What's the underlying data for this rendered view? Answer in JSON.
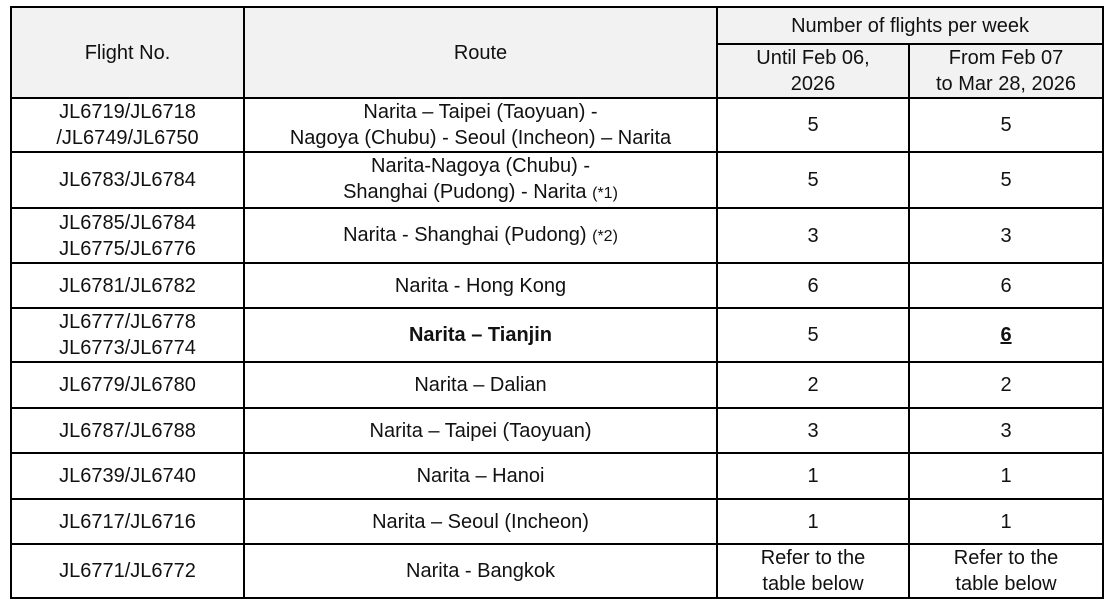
{
  "headers": {
    "flight_no": "Flight No.",
    "route": "Route",
    "flights_per_week": "Number of flights per week",
    "period1_line1": "Until Feb 06,",
    "period1_line2": "2026",
    "period2_line1": "From Feb 07",
    "period2_line2": "to Mar 28, 2026"
  },
  "rows": [
    {
      "flight_l1": "JL6719/JL6718",
      "flight_l2": "/JL6749/JL6750",
      "route_l1": "Narita – Taipei (Taoyuan) -",
      "route_l2": "Nagoya (Chubu) - Seoul (Incheon) – Narita",
      "note": "",
      "p1": "5",
      "p2": "5"
    },
    {
      "flight_l1": "JL6783/JL6784",
      "flight_l2": "",
      "route_l1": "Narita-Nagoya (Chubu) -",
      "route_l2": "Shanghai (Pudong) - Narita",
      "note": "(*1)",
      "p1": "5",
      "p2": "5"
    },
    {
      "flight_l1": "JL6785/JL6784",
      "flight_l2": "JL6775/JL6776",
      "route_l1": "Narita - Shanghai (Pudong)",
      "route_l2": "",
      "note": "(*2)",
      "p1": "3",
      "p2": "3"
    },
    {
      "flight_l1": "JL6781/JL6782",
      "flight_l2": "",
      "route_l1": "Narita - Hong Kong",
      "route_l2": "",
      "note": "",
      "p1": "6",
      "p2": "6"
    },
    {
      "flight_l1": "JL6777/JL6778",
      "flight_l2": "JL6773/JL6774",
      "route_l1": "Narita – Tianjin",
      "route_l2": "",
      "note": "",
      "p1": "5",
      "p2": "6",
      "highlight": true
    },
    {
      "flight_l1": "JL6779/JL6780",
      "flight_l2": "",
      "route_l1": "Narita – Dalian",
      "route_l2": "",
      "note": "",
      "p1": "2",
      "p2": "2"
    },
    {
      "flight_l1": "JL6787/JL6788",
      "flight_l2": "",
      "route_l1": "Narita – Taipei (Taoyuan)",
      "route_l2": "",
      "note": "",
      "p1": "3",
      "p2": "3"
    },
    {
      "flight_l1": "JL6739/JL6740",
      "flight_l2": "",
      "route_l1": "Narita – Hanoi",
      "route_l2": "",
      "note": "",
      "p1": "1",
      "p2": "1"
    },
    {
      "flight_l1": "JL6717/JL6716",
      "flight_l2": "",
      "route_l1": "Narita – Seoul (Incheon)",
      "route_l2": "",
      "note": "",
      "p1": "1",
      "p2": "1"
    },
    {
      "flight_l1": "JL6771/JL6772",
      "flight_l2": "",
      "route_l1": "Narita - Bangkok",
      "route_l2": "",
      "note": "",
      "p1": "Refer to the table below",
      "p2": "Refer to the table below"
    }
  ]
}
